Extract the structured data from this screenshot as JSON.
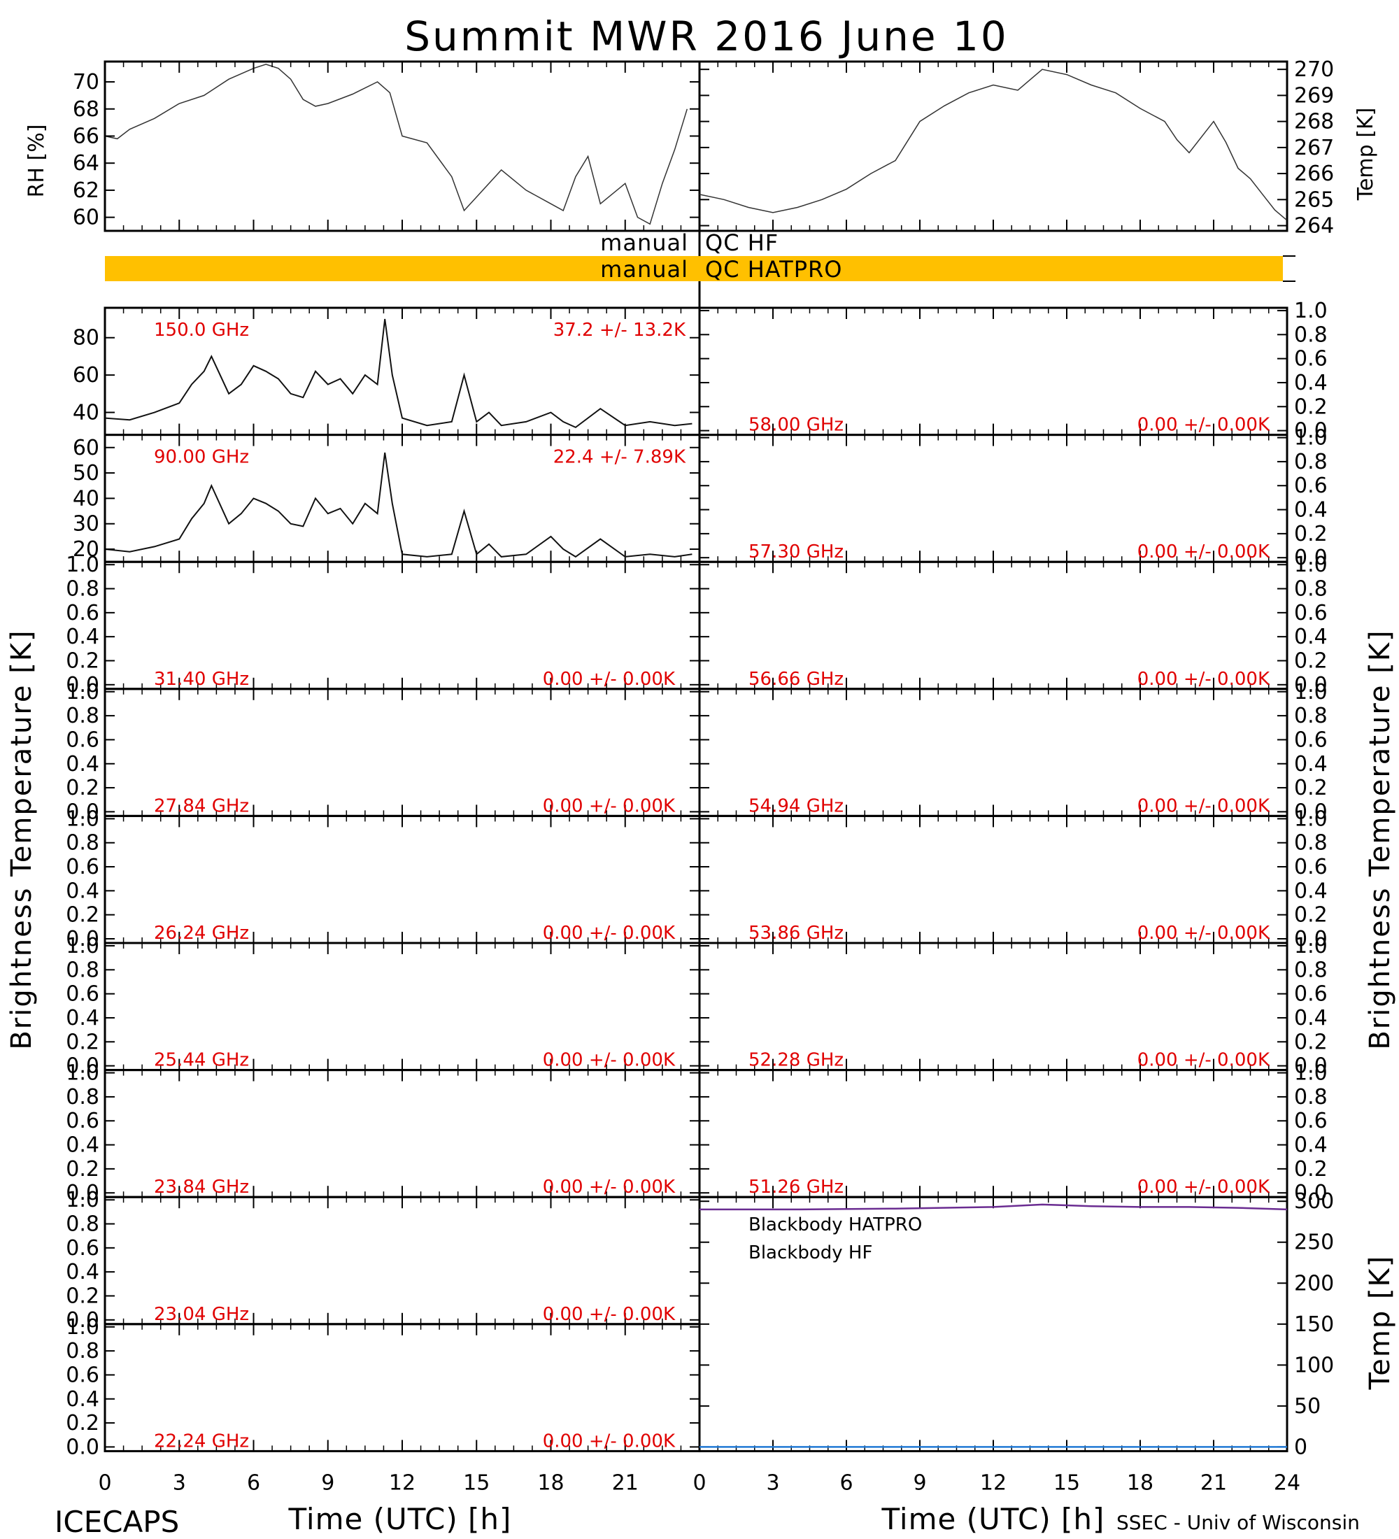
{
  "title": "Summit MWR 2016 June 10",
  "footer": {
    "left": "ICECAPS",
    "right": "SSEC - Univ of Wisconsin",
    "xlabel": "Time (UTC) [h]"
  },
  "colors": {
    "annotation": "#e00000",
    "qc_bar": "#ffc000",
    "blackbody_hatpro": "#1f78d4",
    "blackbody_hf": "#6a2c91"
  },
  "axes_labels": {
    "rh": "RH [%]",
    "temp_k": "Temp [K]",
    "tb_left": "Brightness Temperature [K]",
    "tb_right": "Brightness Temperature [K]",
    "bb_temp": "Temp [K]"
  },
  "qc": {
    "rows": [
      {
        "left": "manual",
        "right": "QC HF",
        "bar": false
      },
      {
        "left": "manual",
        "right": "QC HATPRO",
        "bar": true
      }
    ]
  },
  "x_ticks": [
    "0",
    "3",
    "6",
    "9",
    "12",
    "15",
    "18",
    "21"
  ],
  "x_ticks_right": [
    "0",
    "3",
    "6",
    "9",
    "12",
    "15",
    "18",
    "21",
    "24"
  ],
  "chart_data": [
    {
      "type": "line",
      "id": "rh",
      "ylabel": "RH [%]",
      "ylim": [
        59,
        71.5
      ],
      "yticks": [
        "60",
        "62",
        "64",
        "66",
        "68",
        "70"
      ],
      "xlim": [
        0,
        24
      ],
      "series": [
        {
          "x": [
            0,
            0.5,
            1,
            2,
            3,
            4,
            5,
            6,
            6.5,
            7,
            7.5,
            8,
            8.5,
            9,
            10,
            11,
            11.5,
            12,
            13,
            14,
            14.5,
            15,
            16,
            17,
            18,
            18.5,
            19,
            19.5,
            20,
            21,
            21.5,
            22,
            22.5,
            23,
            23.5
          ],
          "values": [
            66,
            65.8,
            66.5,
            67.3,
            68.4,
            69,
            70.2,
            71,
            71.3,
            71,
            70.2,
            68.7,
            68.2,
            68.4,
            69.1,
            70,
            69.2,
            66,
            65.5,
            63,
            60.5,
            61.5,
            63.5,
            62,
            61,
            60.5,
            63,
            64.5,
            61,
            62.5,
            60,
            59.5,
            62.5,
            65,
            68
          ]
        }
      ]
    },
    {
      "type": "line",
      "id": "temp",
      "ylabel": "Temp [K]",
      "ylim": [
        263.8,
        270.3
      ],
      "yticks": [
        "264",
        "265",
        "266",
        "267",
        "268",
        "269",
        "270"
      ],
      "xlim": [
        0,
        24
      ],
      "series": [
        {
          "x": [
            0,
            1,
            2,
            3,
            4,
            5,
            6,
            7,
            8,
            9,
            10,
            11,
            12,
            13,
            13.5,
            14,
            15,
            16,
            17,
            18,
            19,
            19.5,
            20,
            21,
            21.5,
            22,
            22.5,
            23,
            23.5,
            24
          ],
          "values": [
            265.2,
            265,
            264.7,
            264.5,
            264.7,
            265,
            265.4,
            266,
            266.5,
            268,
            268.6,
            269.1,
            269.4,
            269.2,
            269.6,
            270,
            269.8,
            269.4,
            269.1,
            268.5,
            268,
            267.3,
            266.8,
            268,
            267.2,
            266.2,
            265.8,
            265.2,
            264.6,
            264.2
          ]
        }
      ]
    },
    {
      "type": "line",
      "id": "tb150",
      "label": "150.0 GHz",
      "stat": "37.2 +/-  13.2K",
      "ylim": [
        28,
        96
      ],
      "yticks": [
        "40",
        "60",
        "80"
      ],
      "xlim": [
        0,
        23.7
      ],
      "series": [
        {
          "x": [
            0,
            1,
            2,
            3,
            3.5,
            4,
            4.3,
            5,
            5.5,
            6,
            6.5,
            7,
            7.5,
            8,
            8.5,
            9,
            9.5,
            10,
            10.5,
            11,
            11.3,
            11.6,
            12,
            13,
            14,
            14.5,
            15,
            15.5,
            16,
            17,
            18,
            18.5,
            19,
            20,
            21,
            22,
            23,
            23.7
          ],
          "values": [
            37,
            36,
            40,
            45,
            55,
            62,
            70,
            50,
            55,
            65,
            62,
            58,
            50,
            48,
            62,
            55,
            58,
            50,
            60,
            55,
            90,
            60,
            37,
            33,
            35,
            60,
            35,
            40,
            33,
            35,
            40,
            35,
            32,
            42,
            33,
            35,
            33,
            34
          ]
        }
      ]
    },
    {
      "type": "line",
      "id": "tb90",
      "label": "90.00 GHz",
      "stat": "22.4 +/-   7.89K",
      "ylim": [
        15,
        65
      ],
      "yticks": [
        "20",
        "30",
        "40",
        "50",
        "60"
      ],
      "xlim": [
        0,
        23.7
      ],
      "series": [
        {
          "x": [
            0,
            1,
            2,
            3,
            3.5,
            4,
            4.3,
            5,
            5.5,
            6,
            6.5,
            7,
            7.5,
            8,
            8.5,
            9,
            9.5,
            10,
            10.5,
            11,
            11.3,
            11.6,
            12,
            13,
            14,
            14.5,
            15,
            15.5,
            16,
            17,
            18,
            18.5,
            19,
            20,
            21,
            22,
            23,
            23.7
          ],
          "values": [
            20,
            19,
            21,
            24,
            32,
            38,
            45,
            30,
            34,
            40,
            38,
            35,
            30,
            29,
            40,
            34,
            36,
            30,
            38,
            34,
            58,
            38,
            18,
            17,
            18,
            35,
            18,
            22,
            17,
            18,
            25,
            20,
            17,
            24,
            17,
            18,
            17,
            18
          ]
        }
      ]
    }
  ],
  "empty_left": [
    {
      "label": "31.40 GHz",
      "stat": "0.00 +/-  0.00K"
    },
    {
      "label": "27.84 GHz",
      "stat": "0.00 +/-  0.00K"
    },
    {
      "label": "26.24 GHz",
      "stat": "0.00 +/-  0.00K"
    },
    {
      "label": "25.44 GHz",
      "stat": "0.00 +/-  0.00K"
    },
    {
      "label": "23.84 GHz",
      "stat": "0.00 +/-  0.00K"
    },
    {
      "label": "23.04 GHz",
      "stat": "0.00 +/-  0.00K"
    },
    {
      "label": "22.24 GHz",
      "stat": "0.00 +/-  0.00K"
    }
  ],
  "empty_right": [
    {
      "label": "58.00 GHz",
      "stat": "0.00 +/-  0.00K"
    },
    {
      "label": "57.30 GHz",
      "stat": "0.00 +/-  0.00K"
    },
    {
      "label": "56.66 GHz",
      "stat": "0.00 +/-  0.00K"
    },
    {
      "label": "54.94 GHz",
      "stat": "0.00 +/-  0.00K"
    },
    {
      "label": "53.86 GHz",
      "stat": "0.00 +/-  0.00K"
    },
    {
      "label": "52.28 GHz",
      "stat": "0.00 +/-  0.00K"
    },
    {
      "label": "51.26 GHz",
      "stat": "0.00 +/-  0.00K"
    }
  ],
  "unit_ticks": [
    "0.0",
    "0.2",
    "0.4",
    "0.6",
    "0.8",
    "1.0"
  ],
  "blackbody": {
    "ylim": [
      0,
      300
    ],
    "yticks": [
      "0",
      "50",
      "100",
      "150",
      "200",
      "250",
      "300"
    ],
    "legend": [
      "Blackbody HATPRO",
      "Blackbody HF"
    ],
    "series": [
      {
        "name": "Blackbody HATPRO",
        "x": [
          0,
          24
        ],
        "values": [
          0,
          0
        ]
      },
      {
        "name": "Blackbody HF",
        "x": [
          0,
          4,
          8,
          12,
          14,
          16,
          18,
          20,
          22,
          24
        ],
        "values": [
          290,
          290,
          291,
          293,
          296,
          294,
          293,
          293,
          292,
          290
        ]
      }
    ]
  }
}
